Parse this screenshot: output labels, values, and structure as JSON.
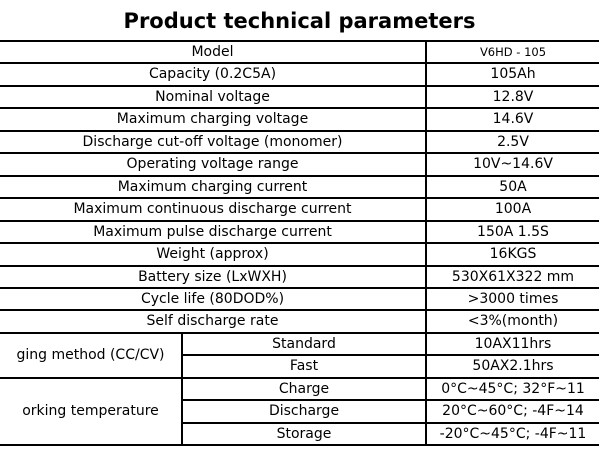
{
  "title": "Product technical parameters",
  "rows": [
    {
      "label": "Model",
      "value": "V6HD - 105"
    },
    {
      "label": "Capacity (0.2C5A)",
      "value": "105Ah"
    },
    {
      "label": "Nominal voltage",
      "value": "12.8V"
    },
    {
      "label": "Maximum charging voltage",
      "value": "14.6V"
    },
    {
      "label": "Discharge cut-off voltage (monomer)",
      "value": "2.5V"
    },
    {
      "label": "Operating voltage range",
      "value": "10V~14.6V"
    },
    {
      "label": "Maximum charging current",
      "value": "50A"
    },
    {
      "label": "Maximum continuous discharge current",
      "value": "100A"
    },
    {
      "label": "Maximum pulse discharge current",
      "value": "150A 1.5S"
    },
    {
      "label": "Weight (approx)",
      "value": "16KGS"
    },
    {
      "label": "Battery size (LxWXH)",
      "value": "530X61X322 mm"
    },
    {
      "label": "Cycle life (80DOD%)",
      "value": ">3000 times"
    },
    {
      "label": "Self discharge rate",
      "value": "<3%(month)"
    }
  ],
  "charging": {
    "label": "ging method (CC/CV)",
    "sub": [
      {
        "label": "Standard",
        "value": "10AX11hrs"
      },
      {
        "label": "Fast",
        "value": "50AX2.1hrs"
      }
    ]
  },
  "working": {
    "label": "orking temperature",
    "sub": [
      {
        "label": "Charge",
        "value": "0°C~45°C; 32°F~11"
      },
      {
        "label": "Discharge",
        "value": "20°C~60°C; -4F~14"
      },
      {
        "label": "Storage",
        "value": "-20°C~45°C; -4F~11"
      }
    ]
  }
}
